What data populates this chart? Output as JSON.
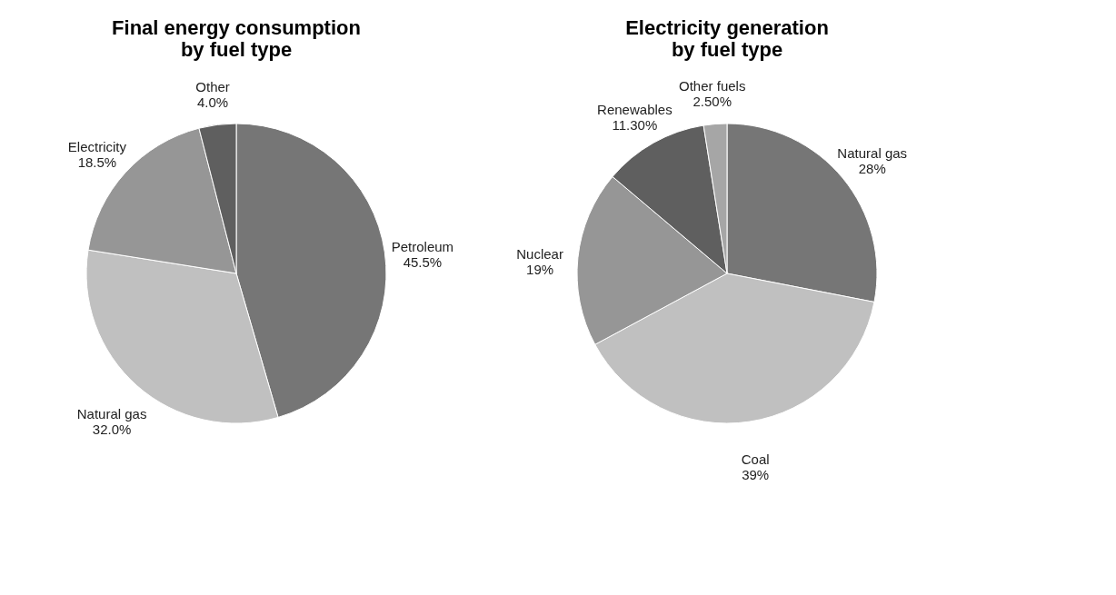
{
  "chart_data": [
    {
      "type": "pie",
      "title": "Final energy consumption\nby fuel type",
      "categories": [
        "Petroleum",
        "Natural gas",
        "Electricity",
        "Other"
      ],
      "values": [
        45.5,
        32.0,
        18.5,
        4.0
      ],
      "value_labels": [
        "45.5%",
        "32.0%",
        "18.5%",
        "4.0%"
      ],
      "colors": [
        "#767676",
        "#c0c0c0",
        "#969696",
        "#5f5f5f"
      ],
      "legend": false
    },
    {
      "type": "pie",
      "title": "Electricity generation\nby fuel type",
      "categories": [
        "Natural gas",
        "Coal",
        "Nuclear",
        "Renewables",
        "Other fuels"
      ],
      "values": [
        28,
        39,
        19,
        11.3,
        2.5
      ],
      "value_labels": [
        "28%",
        "39%",
        "19%",
        "11.30%",
        "2.50%"
      ],
      "colors": [
        "#767676",
        "#c0c0c0",
        "#969696",
        "#5f5f5f",
        "#a6a6a6"
      ],
      "legend": false
    }
  ]
}
